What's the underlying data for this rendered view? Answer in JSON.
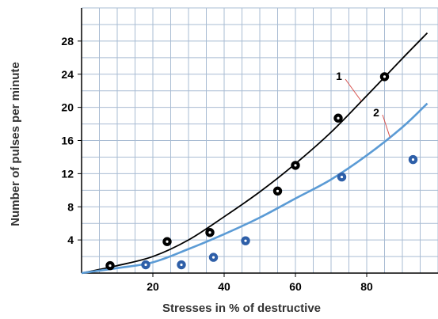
{
  "chart_data": {
    "type": "scatter",
    "xlabel": "Stresses in % of destructive",
    "ylabel": "Number of pulses per minute",
    "xlim": [
      0,
      100
    ],
    "ylim": [
      0,
      32
    ],
    "x_ticks": [
      20,
      40,
      60,
      80
    ],
    "y_ticks": [
      4,
      8,
      12,
      16,
      20,
      24,
      28
    ],
    "grid": true,
    "series": [
      {
        "name": "1",
        "color": "#000000",
        "marker": "ring",
        "points": [
          {
            "x": 8,
            "y": 0.9
          },
          {
            "x": 24,
            "y": 3.8
          },
          {
            "x": 36,
            "y": 4.9
          },
          {
            "x": 55,
            "y": 9.9
          },
          {
            "x": 60,
            "y": 13.0
          },
          {
            "x": 72,
            "y": 18.7
          },
          {
            "x": 85,
            "y": 23.7
          }
        ],
        "curve": [
          {
            "x": 0,
            "y": 0
          },
          {
            "x": 10,
            "y": 0.9
          },
          {
            "x": 20,
            "y": 2.0
          },
          {
            "x": 30,
            "y": 4.0
          },
          {
            "x": 40,
            "y": 6.8
          },
          {
            "x": 50,
            "y": 9.8
          },
          {
            "x": 60,
            "y": 13.2
          },
          {
            "x": 70,
            "y": 17.0
          },
          {
            "x": 80,
            "y": 21.4
          },
          {
            "x": 90,
            "y": 25.9
          },
          {
            "x": 100,
            "y": 30.3
          }
        ]
      },
      {
        "name": "2",
        "color": "#5b9bd5",
        "marker_color": "#2e5fa8",
        "marker": "ring",
        "points": [
          {
            "x": 18,
            "y": 1.0
          },
          {
            "x": 28,
            "y": 1.0
          },
          {
            "x": 37,
            "y": 1.9
          },
          {
            "x": 46,
            "y": 3.9
          },
          {
            "x": 73,
            "y": 11.6
          },
          {
            "x": 93,
            "y": 13.7
          }
        ],
        "curve": [
          {
            "x": 0,
            "y": 0
          },
          {
            "x": 10,
            "y": 0.6
          },
          {
            "x": 20,
            "y": 1.3
          },
          {
            "x": 30,
            "y": 2.9
          },
          {
            "x": 40,
            "y": 4.7
          },
          {
            "x": 50,
            "y": 6.7
          },
          {
            "x": 60,
            "y": 9.0
          },
          {
            "x": 70,
            "y": 11.3
          },
          {
            "x": 80,
            "y": 14.2
          },
          {
            "x": 90,
            "y": 17.6
          },
          {
            "x": 100,
            "y": 21.7
          }
        ]
      }
    ],
    "annotations": [
      {
        "text": "1",
        "series": 0
      },
      {
        "text": "2",
        "series": 1
      }
    ]
  }
}
